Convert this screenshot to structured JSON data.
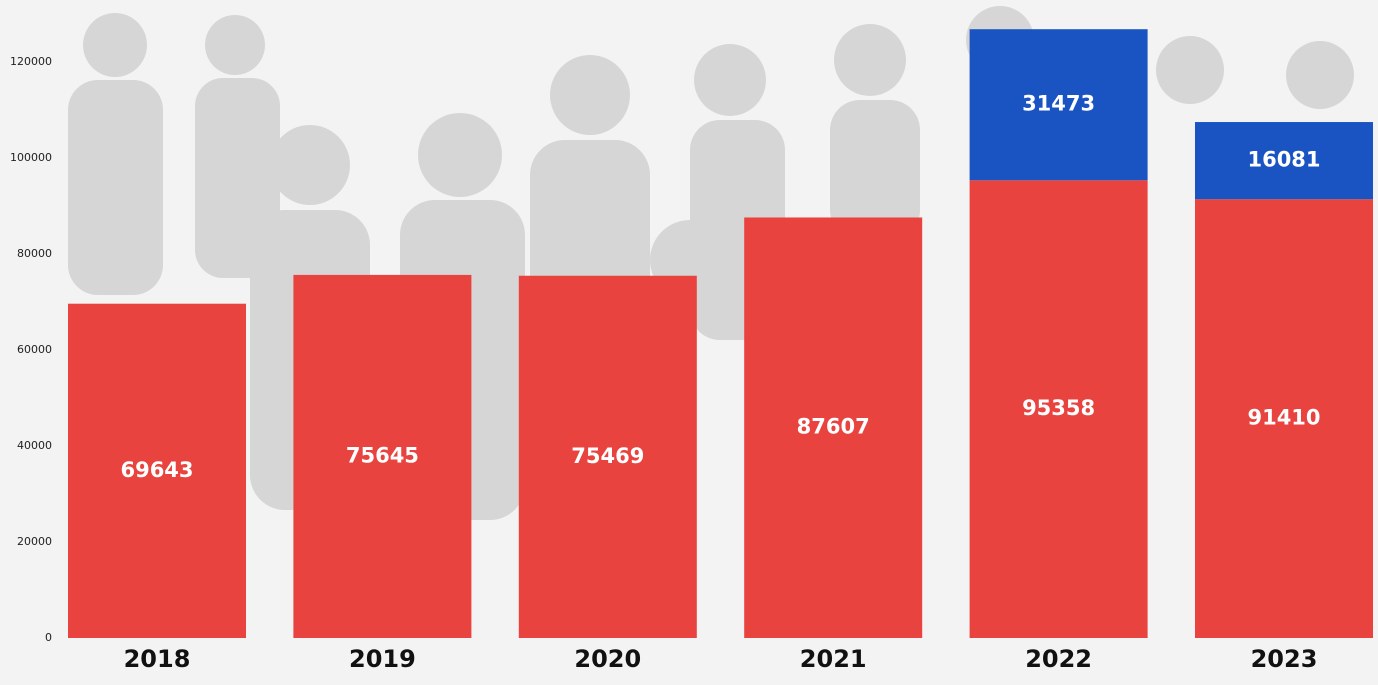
{
  "chart_data": {
    "type": "stacked_bar",
    "categories": [
      "2018",
      "2019",
      "2020",
      "2021",
      "2022",
      "2023"
    ],
    "series": [
      {
        "color": "#e8433e",
        "values": [
          69643,
          75645,
          75469,
          87607,
          95358,
          91410
        ]
      },
      {
        "color": "#1a54c2",
        "values": [
          null,
          null,
          null,
          null,
          31473,
          16081
        ]
      }
    ],
    "ylim": [
      0,
      130000
    ],
    "yticks": [
      0,
      20000,
      40000,
      60000,
      80000,
      100000,
      120000
    ]
  }
}
